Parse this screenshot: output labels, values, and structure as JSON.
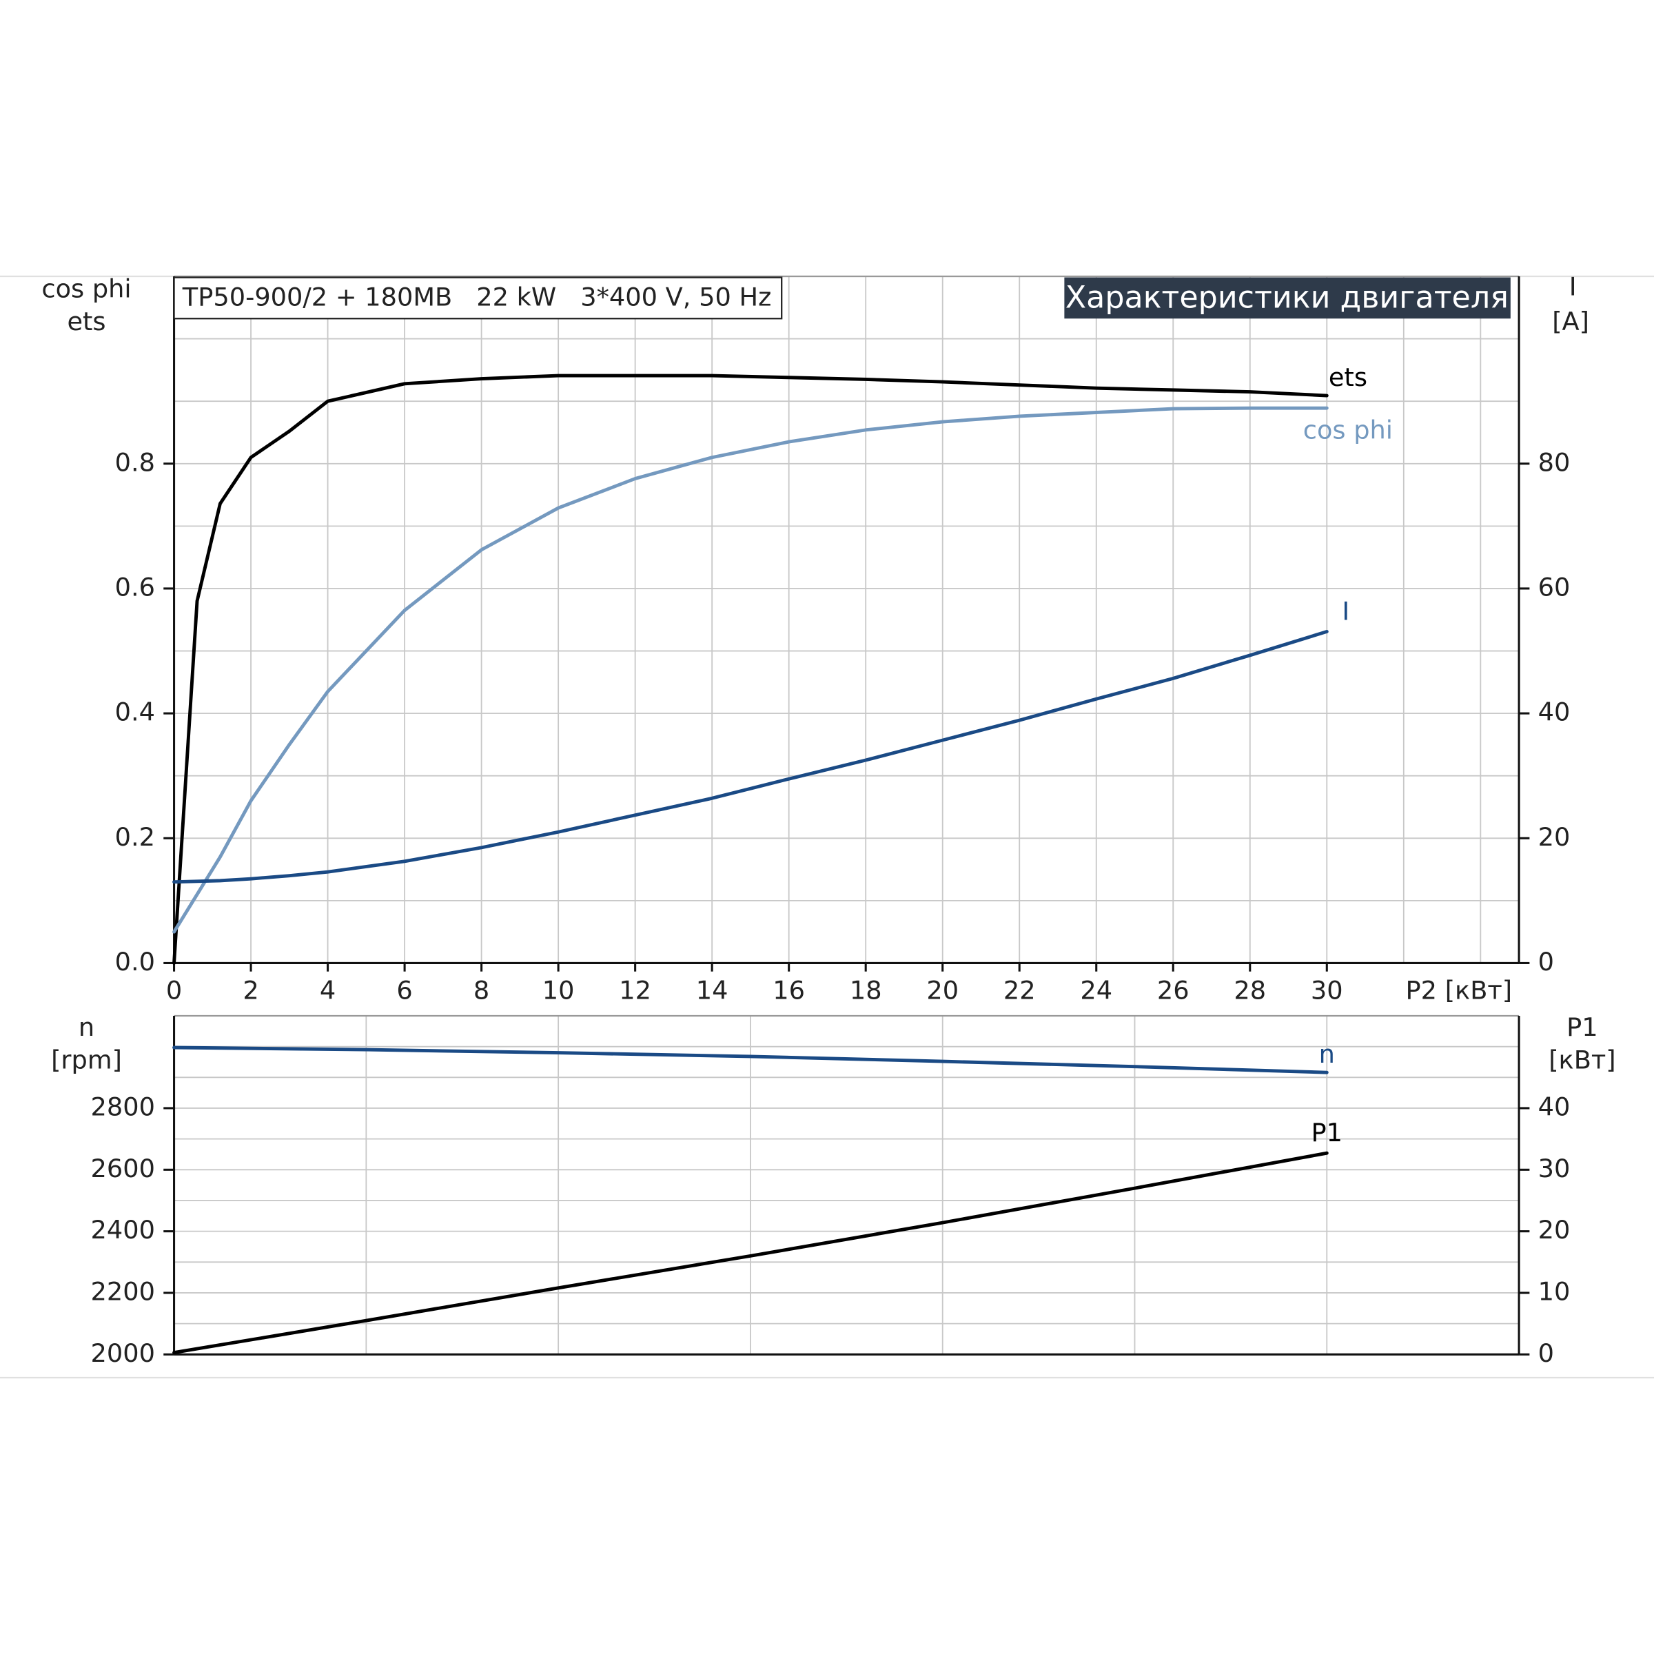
{
  "chart_data": [
    {
      "type": "line",
      "title": "Характеристики двигателя",
      "subtitle": "TP50-900/2 + 180MB   22 kW   3*400 V, 50 Hz",
      "x_label": "P2 [кВт]",
      "y_label": [
        "cos phi",
        "ets"
      ],
      "y2_label": [
        "I",
        "[A]"
      ],
      "x": [
        0,
        0.6,
        1.2,
        2,
        3,
        4,
        6,
        8,
        10,
        12,
        14,
        16,
        18,
        20,
        22,
        24,
        26,
        28,
        30
      ],
      "xlim": [
        0,
        35
      ],
      "xticks": [
        0,
        2,
        4,
        6,
        8,
        10,
        12,
        14,
        16,
        18,
        20,
        22,
        24,
        26,
        28,
        30
      ],
      "xgrid": [
        2,
        4,
        6,
        8,
        10,
        12,
        14,
        16,
        18,
        20,
        22,
        24,
        26,
        28,
        30,
        32,
        34
      ],
      "ylim": [
        0,
        1.1
      ],
      "yticks": [
        {
          "value": 0,
          "label": "0.0"
        },
        0.2,
        0.4,
        0.6,
        0.8
      ],
      "ygrid": [
        0.1,
        0.2,
        0.3,
        0.4,
        0.5,
        0.6,
        0.7,
        0.8,
        0.9,
        1.0
      ],
      "y2lim": [
        0,
        110
      ],
      "y2ticks": [
        0,
        20,
        40,
        60,
        80
      ],
      "series": [
        {
          "name": "ets",
          "color": "#000000",
          "values": [
            0,
            0.58,
            0.736,
            0.81,
            0.852,
            0.9,
            0.928,
            0.936,
            0.941,
            0.941,
            0.941,
            0.938,
            0.935,
            0.931,
            0.926,
            0.921,
            0.918,
            0.915,
            0.909
          ]
        },
        {
          "name": "cos phi",
          "color": "#7499bf",
          "values": [
            0.05,
            0.11,
            0.17,
            0.26,
            0.35,
            0.435,
            0.565,
            0.662,
            0.729,
            0.776,
            0.81,
            0.835,
            0.854,
            0.867,
            0.876,
            0.882,
            0.888,
            0.889,
            0.889
          ]
        },
        {
          "name": "I",
          "color": "#1a4a85",
          "axis": "y2",
          "values": [
            13.0,
            13.1,
            13.2,
            13.5,
            14.0,
            14.6,
            16.3,
            18.5,
            21.0,
            23.7,
            26.4,
            29.5,
            32.5,
            35.7,
            38.9,
            42.3,
            45.6,
            49.3,
            53.1
          ]
        }
      ]
    },
    {
      "type": "line",
      "y_label": [
        "n",
        "[rpm]"
      ],
      "y2_label": [
        "P1",
        "[кВт]"
      ],
      "x": [
        0,
        5,
        10,
        15,
        20,
        25,
        30
      ],
      "xlim": [
        0,
        35
      ],
      "xgrid": [
        5,
        10,
        15,
        20,
        25,
        30
      ],
      "ylim": [
        2000,
        3100
      ],
      "yticks": [
        2000,
        2200,
        2400,
        2600,
        2800
      ],
      "ygrid": [
        2100,
        2200,
        2300,
        2400,
        2500,
        2600,
        2700,
        2800,
        2900,
        3000
      ],
      "y2lim": [
        0,
        55
      ],
      "y2ticks": [
        0,
        10,
        20,
        30,
        40
      ],
      "series": [
        {
          "name": "n",
          "color": "#1a4a85",
          "values": [
            2997,
            2990,
            2980,
            2968,
            2952,
            2935,
            2916
          ]
        },
        {
          "name": "P1",
          "color": "#000000",
          "axis": "y2",
          "values": [
            0.3,
            5.5,
            10.8,
            16.0,
            21.4,
            27.0,
            32.7
          ]
        }
      ]
    }
  ]
}
